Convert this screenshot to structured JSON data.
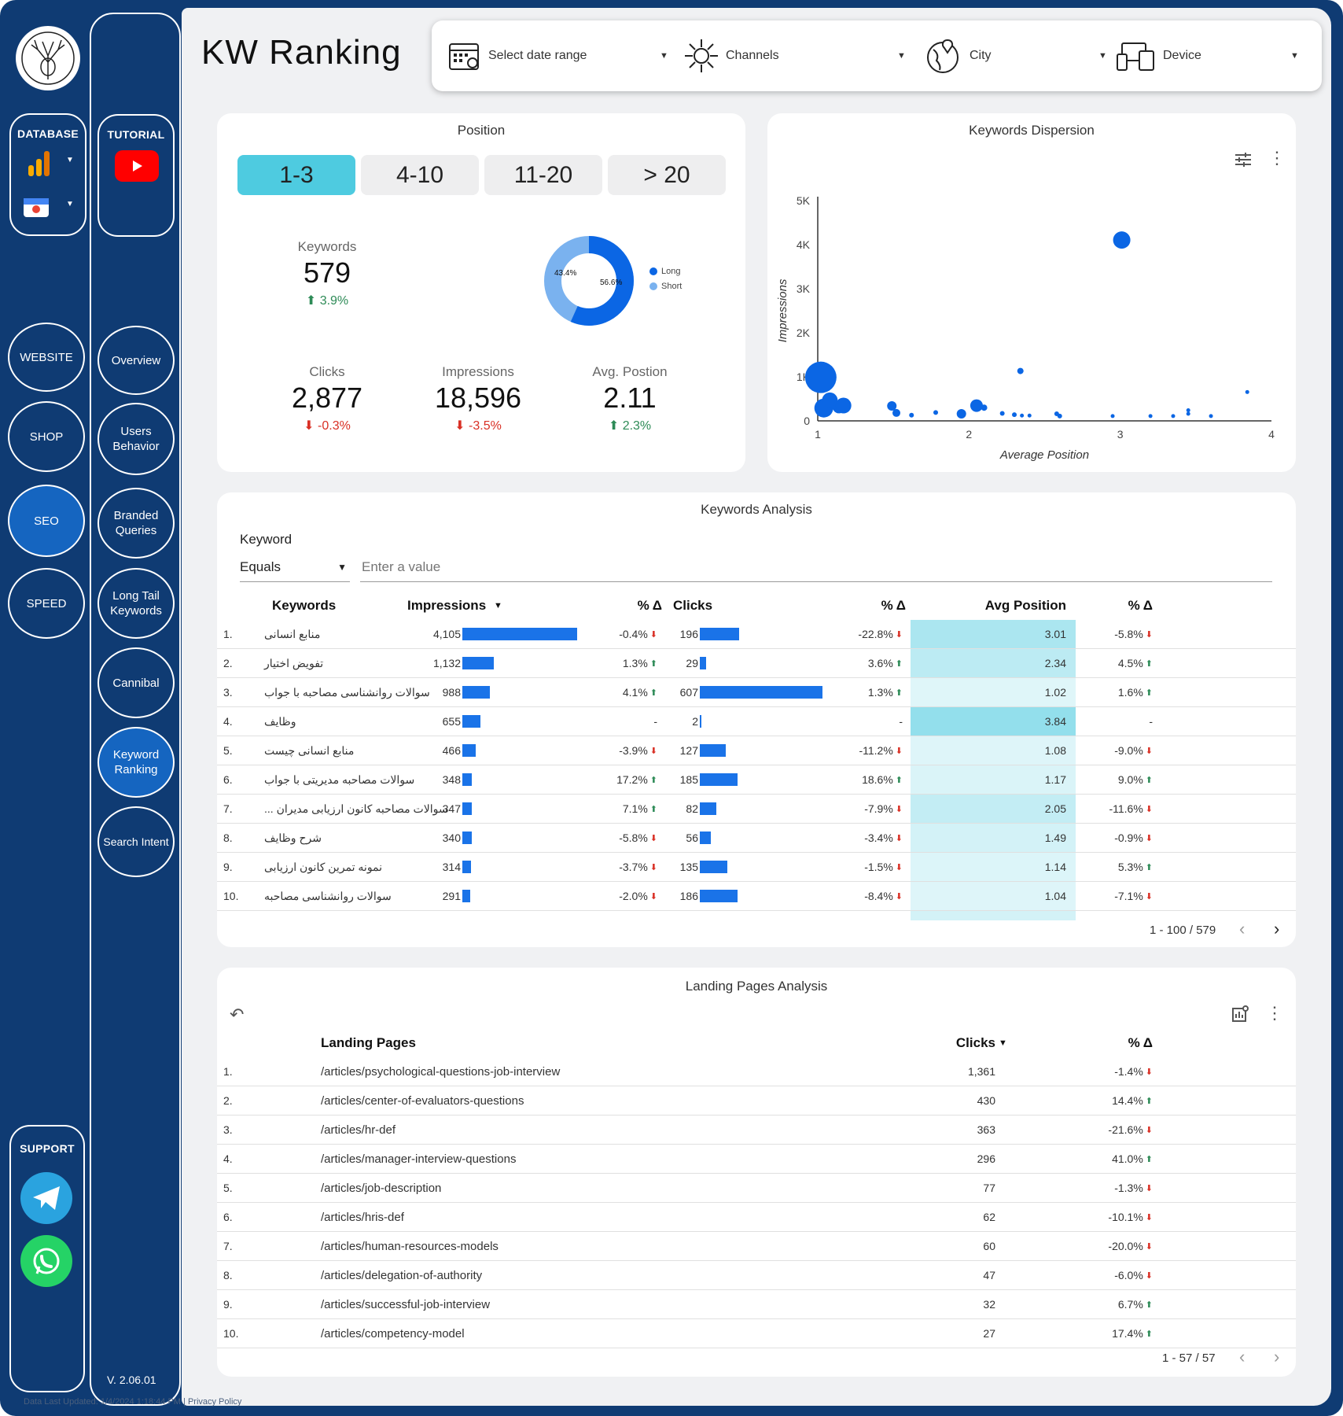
{
  "app": {
    "title": "KW Ranking",
    "version": "V. 2.06.01",
    "footer": "Data Last Updated: 1/4/2024 1:18:44 PM  |  Privacy Policy"
  },
  "colors": {
    "nav": "#0f3b73",
    "accent": "#1a73e8",
    "tab_selected": "#4ecbe0",
    "up": "#2e8b57",
    "down": "#d93025"
  },
  "sidebar_left": {
    "database_label": "DATABASE",
    "items": [
      "WEBSITE",
      "SHOP",
      "SEO",
      "SPEED"
    ],
    "active": "SEO",
    "support_label": "SUPPORT"
  },
  "sidebar_right": {
    "tutorial_label": "TUTORIAL",
    "items": [
      "Overview",
      "Users Behavior",
      "Branded Queries",
      "Long Tail Keywords",
      "Cannibal",
      "Keyword Ranking",
      "Search Intent"
    ],
    "active": "Keyword Ranking"
  },
  "filters": {
    "date": "Select date range",
    "channels": "Channels",
    "city": "City",
    "device": "Device"
  },
  "position": {
    "title": "Position",
    "tabs": [
      "1-3",
      "4-10",
      "11-20",
      "> 20"
    ],
    "selected_tab": "1-3",
    "keywords": {
      "label": "Keywords",
      "value": "579",
      "change": "3.9%"
    },
    "clicks": {
      "label": "Clicks",
      "value": "2,877",
      "change": "-0.3%"
    },
    "impressions": {
      "label": "Impressions",
      "value": "18,596",
      "change": "-3.5%"
    },
    "avg_position": {
      "label": "Avg. Postion",
      "value": "2.11",
      "change": "2.3%"
    },
    "donut": {
      "long_pct": "56.6%",
      "short_pct": "43.4%",
      "long_label": "Long",
      "short_label": "Short"
    }
  },
  "chart_data": {
    "type": "scatter",
    "title": "Keywords Dispersion",
    "xlabel": "Average Position",
    "ylabel": "Impressions",
    "xlim": [
      1,
      4
    ],
    "ylim": [
      0,
      5000
    ],
    "x_ticks": [
      "1",
      "2",
      "3",
      "4"
    ],
    "y_ticks": [
      "0",
      "1K",
      "2K",
      "3K",
      "4K",
      "5K"
    ],
    "points": [
      {
        "x": 3.01,
        "y": 4105,
        "s": 11
      },
      {
        "x": 1.02,
        "y": 988,
        "s": 20
      },
      {
        "x": 1.04,
        "y": 291,
        "s": 12
      },
      {
        "x": 1.08,
        "y": 466,
        "s": 10
      },
      {
        "x": 1.14,
        "y": 314,
        "s": 8
      },
      {
        "x": 1.17,
        "y": 348,
        "s": 10
      },
      {
        "x": 1.49,
        "y": 340,
        "s": 6
      },
      {
        "x": 1.52,
        "y": 180,
        "s": 5
      },
      {
        "x": 1.62,
        "y": 130,
        "s": 3
      },
      {
        "x": 1.78,
        "y": 190,
        "s": 3
      },
      {
        "x": 1.95,
        "y": 160,
        "s": 6
      },
      {
        "x": 2.05,
        "y": 347,
        "s": 8
      },
      {
        "x": 2.1,
        "y": 300,
        "s": 4
      },
      {
        "x": 2.22,
        "y": 170,
        "s": 3
      },
      {
        "x": 2.34,
        "y": 1132,
        "s": 4
      },
      {
        "x": 2.3,
        "y": 140,
        "s": 3
      },
      {
        "x": 2.35,
        "y": 120,
        "s": 2.5
      },
      {
        "x": 2.4,
        "y": 120,
        "s": 2.5
      },
      {
        "x": 2.58,
        "y": 160,
        "s": 3
      },
      {
        "x": 2.6,
        "y": 110,
        "s": 3
      },
      {
        "x": 2.95,
        "y": 110,
        "s": 2.5
      },
      {
        "x": 3.2,
        "y": 110,
        "s": 2.5
      },
      {
        "x": 3.35,
        "y": 110,
        "s": 2.5
      },
      {
        "x": 3.45,
        "y": 160,
        "s": 2.5
      },
      {
        "x": 3.45,
        "y": 240,
        "s": 2.5
      },
      {
        "x": 3.6,
        "y": 110,
        "s": 2.5
      },
      {
        "x": 3.84,
        "y": 655,
        "s": 2.5
      }
    ]
  },
  "keywords_analysis": {
    "title": "Keywords Analysis",
    "filter_label": "Keyword",
    "operator": "Equals",
    "placeholder": "Enter a value",
    "columns": [
      "Keywords",
      "Impressions",
      "% Δ",
      "Clicks",
      "% Δ",
      "Avg Position",
      "% Δ"
    ],
    "rows": [
      {
        "n": "1.",
        "kw": "منابع انسانی",
        "imp": "4,105",
        "imp_v": 4105,
        "imp_d": "-0.4%",
        "imp_s": "dn",
        "clk": "196",
        "clk_v": 196,
        "clk_d": "-22.8%",
        "clk_s": "dn",
        "avg": "3.01",
        "avg_v": 3.01,
        "avg_d": "-5.8%",
        "avg_s": "dn"
      },
      {
        "n": "2.",
        "kw": "تفویض اختیار",
        "imp": "1,132",
        "imp_v": 1132,
        "imp_d": "1.3%",
        "imp_s": "up",
        "clk": "29",
        "clk_v": 29,
        "clk_d": "3.6%",
        "clk_s": "up",
        "avg": "2.34",
        "avg_v": 2.34,
        "avg_d": "4.5%",
        "avg_s": "up"
      },
      {
        "n": "3.",
        "kw": "سوالات روانشناسی مصاحبه با جواب",
        "imp": "988",
        "imp_v": 988,
        "imp_d": "4.1%",
        "imp_s": "up",
        "clk": "607",
        "clk_v": 607,
        "clk_d": "1.3%",
        "clk_s": "up",
        "avg": "1.02",
        "avg_v": 1.02,
        "avg_d": "1.6%",
        "avg_s": "up"
      },
      {
        "n": "4.",
        "kw": "وظایف",
        "imp": "655",
        "imp_v": 655,
        "imp_d": "-",
        "imp_s": "",
        "clk": "2",
        "clk_v": 2,
        "clk_d": "-",
        "clk_s": "",
        "avg": "3.84",
        "avg_v": 3.84,
        "avg_d": "-",
        "avg_s": ""
      },
      {
        "n": "5.",
        "kw": "منابع انسانی چیست",
        "imp": "466",
        "imp_v": 466,
        "imp_d": "-3.9%",
        "imp_s": "dn",
        "clk": "127",
        "clk_v": 127,
        "clk_d": "-11.2%",
        "clk_s": "dn",
        "avg": "1.08",
        "avg_v": 1.08,
        "avg_d": "-9.0%",
        "avg_s": "dn"
      },
      {
        "n": "6.",
        "kw": "سوالات مصاحبه مدیریتی با جواب",
        "imp": "348",
        "imp_v": 348,
        "imp_d": "17.2%",
        "imp_s": "up",
        "clk": "185",
        "clk_v": 185,
        "clk_d": "18.6%",
        "clk_s": "up",
        "avg": "1.17",
        "avg_v": 1.17,
        "avg_d": "9.0%",
        "avg_s": "up"
      },
      {
        "n": "7.",
        "kw": "... سوالات مصاحبه کانون ارزیابی مدیران",
        "imp": "347",
        "imp_v": 347,
        "imp_d": "7.1%",
        "imp_s": "up",
        "clk": "82",
        "clk_v": 82,
        "clk_d": "-7.9%",
        "clk_s": "dn",
        "avg": "2.05",
        "avg_v": 2.05,
        "avg_d": "-11.6%",
        "avg_s": "dn"
      },
      {
        "n": "8.",
        "kw": "شرح وظایف",
        "imp": "340",
        "imp_v": 340,
        "imp_d": "-5.8%",
        "imp_s": "dn",
        "clk": "56",
        "clk_v": 56,
        "clk_d": "-3.4%",
        "clk_s": "dn",
        "avg": "1.49",
        "avg_v": 1.49,
        "avg_d": "-0.9%",
        "avg_s": "dn"
      },
      {
        "n": "9.",
        "kw": "نمونه تمرین کانون ارزیابی",
        "imp": "314",
        "imp_v": 314,
        "imp_d": "-3.7%",
        "imp_s": "dn",
        "clk": "135",
        "clk_v": 135,
        "clk_d": "-1.5%",
        "clk_s": "dn",
        "avg": "1.14",
        "avg_v": 1.14,
        "avg_d": "5.3%",
        "avg_s": "up"
      },
      {
        "n": "10.",
        "kw": "سوالات روانشناسی مصاحبه",
        "imp": "291",
        "imp_v": 291,
        "imp_d": "-2.0%",
        "imp_s": "dn",
        "clk": "186",
        "clk_v": 186,
        "clk_d": "-8.4%",
        "clk_s": "dn",
        "avg": "1.04",
        "avg_v": 1.04,
        "avg_d": "-7.1%",
        "avg_s": "dn"
      }
    ],
    "pager": "1 - 100 / 579"
  },
  "landing_pages": {
    "title": "Landing Pages Analysis",
    "columns": [
      "Landing Pages",
      "Clicks",
      "% Δ"
    ],
    "rows": [
      {
        "n": "1.",
        "url": "/articles/psychological-questions-job-interview",
        "clk": "1,361",
        "d": "-1.4%",
        "s": "dn"
      },
      {
        "n": "2.",
        "url": "/articles/center-of-evaluators-questions",
        "clk": "430",
        "d": "14.4%",
        "s": "up"
      },
      {
        "n": "3.",
        "url": "/articles/hr-def",
        "clk": "363",
        "d": "-21.6%",
        "s": "dn"
      },
      {
        "n": "4.",
        "url": "/articles/manager-interview-questions",
        "clk": "296",
        "d": "41.0%",
        "s": "up"
      },
      {
        "n": "5.",
        "url": "/articles/job-description",
        "clk": "77",
        "d": "-1.3%",
        "s": "dn"
      },
      {
        "n": "6.",
        "url": "/articles/hris-def",
        "clk": "62",
        "d": "-10.1%",
        "s": "dn"
      },
      {
        "n": "7.",
        "url": "/articles/human-resources-models",
        "clk": "60",
        "d": "-20.0%",
        "s": "dn"
      },
      {
        "n": "8.",
        "url": "/articles/delegation-of-authority",
        "clk": "47",
        "d": "-6.0%",
        "s": "dn"
      },
      {
        "n": "9.",
        "url": "/articles/successful-job-interview",
        "clk": "32",
        "d": "6.7%",
        "s": "up"
      },
      {
        "n": "10.",
        "url": "/articles/competency-model",
        "clk": "27",
        "d": "17.4%",
        "s": "up"
      }
    ],
    "pager": "1 - 57 / 57"
  }
}
